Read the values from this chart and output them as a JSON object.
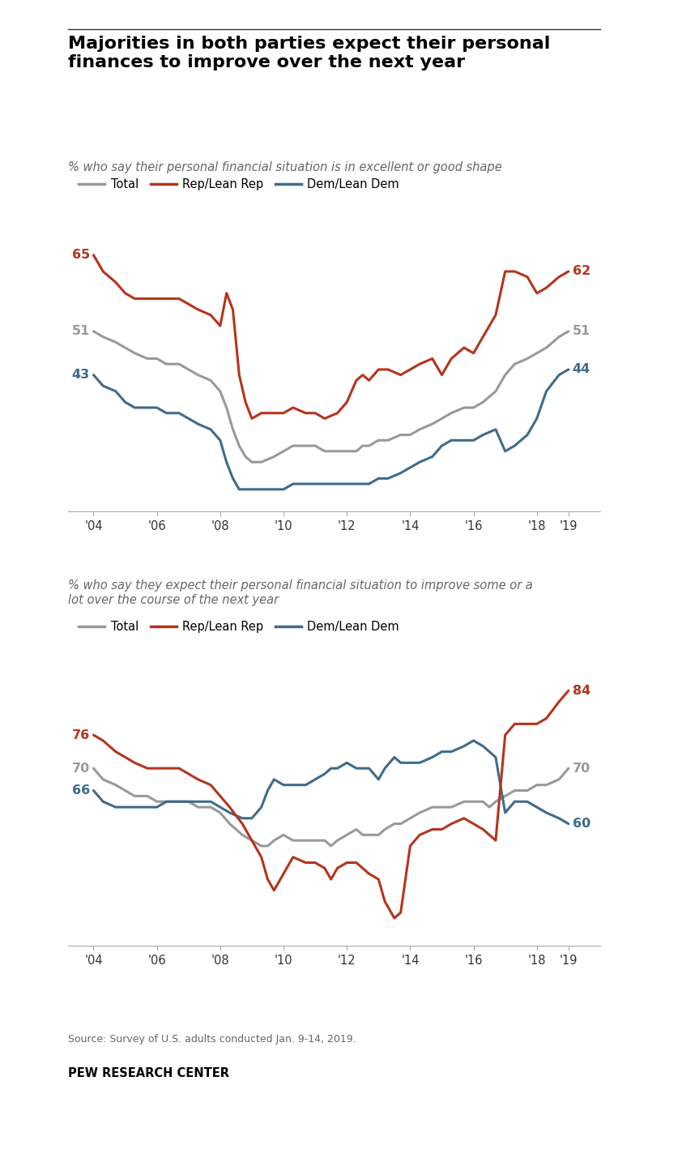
{
  "title": "Majorities in both parties expect their personal\nfinances to improve over the next year",
  "subtitle1": "% who say their personal financial situation is in excellent or good shape",
  "subtitle2": "% who say they expect their personal financial situation to improve some or a\nlot over the course of the next year",
  "source": "Source: Survey of U.S. adults conducted Jan. 9-14, 2019.",
  "branding": "PEW RESEARCH CENTER",
  "colors": {
    "total": "#999999",
    "rep": "#b5341c",
    "dem": "#3d6b8c"
  },
  "chart1": {
    "years": [
      2004.0,
      2004.3,
      2004.7,
      2005.0,
      2005.3,
      2005.7,
      2006.0,
      2006.3,
      2006.7,
      2007.0,
      2007.3,
      2007.7,
      2008.0,
      2008.2,
      2008.4,
      2008.6,
      2008.8,
      2009.0,
      2009.3,
      2009.7,
      2010.0,
      2010.3,
      2010.7,
      2011.0,
      2011.3,
      2011.7,
      2012.0,
      2012.3,
      2012.5,
      2012.7,
      2013.0,
      2013.3,
      2013.7,
      2014.0,
      2014.3,
      2014.7,
      2015.0,
      2015.3,
      2015.7,
      2016.0,
      2016.3,
      2016.7,
      2017.0,
      2017.3,
      2017.7,
      2018.0,
      2018.3,
      2018.7,
      2019.0
    ],
    "total": [
      51,
      50,
      49,
      48,
      47,
      46,
      46,
      45,
      45,
      44,
      43,
      42,
      40,
      37,
      33,
      30,
      28,
      27,
      27,
      28,
      29,
      30,
      30,
      30,
      29,
      29,
      29,
      29,
      30,
      30,
      31,
      31,
      32,
      32,
      33,
      34,
      35,
      36,
      37,
      37,
      38,
      40,
      43,
      45,
      46,
      47,
      48,
      50,
      51
    ],
    "rep": [
      65,
      62,
      60,
      58,
      57,
      57,
      57,
      57,
      57,
      56,
      55,
      54,
      52,
      58,
      55,
      43,
      38,
      35,
      36,
      36,
      36,
      37,
      36,
      36,
      35,
      36,
      38,
      42,
      43,
      42,
      44,
      44,
      43,
      44,
      45,
      46,
      43,
      46,
      48,
      47,
      50,
      54,
      62,
      62,
      61,
      58,
      59,
      61,
      62
    ],
    "dem": [
      43,
      41,
      40,
      38,
      37,
      37,
      37,
      36,
      36,
      35,
      34,
      33,
      31,
      27,
      24,
      22,
      22,
      22,
      22,
      22,
      22,
      23,
      23,
      23,
      23,
      23,
      23,
      23,
      23,
      23,
      24,
      24,
      25,
      26,
      27,
      28,
      30,
      31,
      31,
      31,
      32,
      33,
      29,
      30,
      32,
      35,
      40,
      43,
      44
    ],
    "start_labels": {
      "total": 51,
      "rep": 65,
      "dem": 43
    },
    "end_labels": {
      "total": 51,
      "rep": 62,
      "dem": 44
    },
    "ylim": [
      18,
      73
    ]
  },
  "chart2": {
    "years": [
      2004.0,
      2004.3,
      2004.7,
      2005.0,
      2005.3,
      2005.7,
      2006.0,
      2006.3,
      2006.7,
      2007.0,
      2007.3,
      2007.7,
      2008.0,
      2008.3,
      2008.7,
      2009.0,
      2009.3,
      2009.5,
      2009.7,
      2010.0,
      2010.3,
      2010.7,
      2011.0,
      2011.3,
      2011.5,
      2011.7,
      2012.0,
      2012.3,
      2012.5,
      2012.7,
      2013.0,
      2013.2,
      2013.5,
      2013.7,
      2014.0,
      2014.3,
      2014.7,
      2015.0,
      2015.3,
      2015.7,
      2016.0,
      2016.3,
      2016.5,
      2016.7,
      2017.0,
      2017.3,
      2017.7,
      2018.0,
      2018.3,
      2018.7,
      2019.0
    ],
    "total": [
      70,
      68,
      67,
      66,
      65,
      65,
      64,
      64,
      64,
      64,
      63,
      63,
      62,
      60,
      58,
      57,
      56,
      56,
      57,
      58,
      57,
      57,
      57,
      57,
      56,
      57,
      58,
      59,
      58,
      58,
      58,
      59,
      60,
      60,
      61,
      62,
      63,
      63,
      63,
      64,
      64,
      64,
      63,
      64,
      65,
      66,
      66,
      67,
      67,
      68,
      70
    ],
    "rep": [
      76,
      75,
      73,
      72,
      71,
      70,
      70,
      70,
      70,
      69,
      68,
      67,
      65,
      63,
      60,
      57,
      54,
      50,
      48,
      51,
      54,
      53,
      53,
      52,
      50,
      52,
      53,
      53,
      52,
      51,
      50,
      46,
      43,
      44,
      56,
      58,
      59,
      59,
      60,
      61,
      60,
      59,
      58,
      57,
      76,
      78,
      78,
      78,
      79,
      82,
      84
    ],
    "dem": [
      66,
      64,
      63,
      63,
      63,
      63,
      63,
      64,
      64,
      64,
      64,
      64,
      63,
      62,
      61,
      61,
      63,
      66,
      68,
      67,
      67,
      67,
      68,
      69,
      70,
      70,
      71,
      70,
      70,
      70,
      68,
      70,
      72,
      71,
      71,
      71,
      72,
      73,
      73,
      74,
      75,
      74,
      73,
      72,
      62,
      64,
      64,
      63,
      62,
      61,
      60
    ],
    "start_labels": {
      "total": 70,
      "rep": 76,
      "dem": 66
    },
    "end_labels": {
      "total": 70,
      "rep": 84,
      "dem": 60
    },
    "ylim": [
      38,
      92
    ]
  },
  "xticks": [
    2004,
    2006,
    2008,
    2010,
    2012,
    2014,
    2016,
    2018,
    2019
  ],
  "xticklabels": [
    "'04",
    "'06",
    "'08",
    "'10",
    "'12",
    "'14",
    "'16",
    "'18",
    "'19"
  ]
}
